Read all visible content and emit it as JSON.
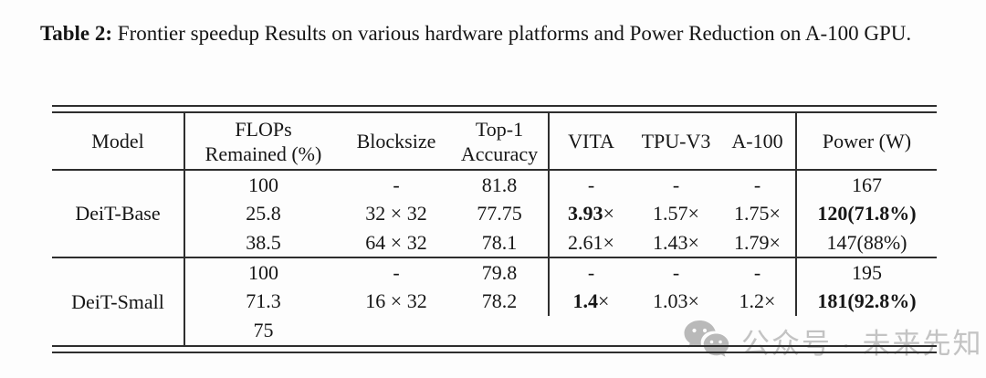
{
  "caption": {
    "label": "Table 2:",
    "text": " Frontier speedup Results on various hardware platforms and Power Reduction on A-100 GPU."
  },
  "table": {
    "headers": {
      "model": "Model",
      "flops_line1": "FLOPs",
      "flops_line2": "Remained (%)",
      "blocksize": "Blocksize",
      "top1_line1": "Top-1",
      "top1_line2": "Accuracy",
      "vita": "VITA",
      "tpu": "TPU-V3",
      "a100": "A-100",
      "power": "Power (W)"
    },
    "groups": [
      {
        "model": "DeiT-Base",
        "rows": [
          {
            "cells": [
              "100",
              "-",
              "81.8",
              "-",
              "-",
              "-",
              "167"
            ]
          },
          {
            "cells": [
              "25.8",
              "32 × 32",
              "77.75",
              [
                [
                  "3.93",
                  1
                ],
                [
                  "×",
                  0
                ]
              ],
              "1.57×",
              "1.75×",
              [
                [
                  "120(71.8%)",
                  1
                ]
              ]
            ]
          },
          {
            "cells": [
              "38.5",
              "64 × 32",
              "78.1",
              "2.61×",
              "1.43×",
              "1.79×",
              "147(88%)"
            ]
          }
        ]
      },
      {
        "model": "DeiT-Small",
        "rows": [
          {
            "cells": [
              "100",
              "-",
              "79.8",
              "-",
              "-",
              "-",
              "195"
            ]
          },
          {
            "cells": [
              "71.3",
              "16 × 32",
              "78.2",
              [
                [
                  "1.4",
                  1
                ],
                [
                  "×",
                  0
                ]
              ],
              "1.03×",
              "1.2×",
              [
                [
                  "181(92.8%)",
                  1
                ]
              ]
            ]
          },
          {
            "cells": [
              "75",
              "",
              "",
              "",
              "",
              "",
              ""
            ]
          }
        ]
      }
    ]
  },
  "watermark": {
    "icon": "wechat-icon",
    "text": "公众号 · 未来先知",
    "color": "#c3c3c3"
  },
  "colors": {
    "rule": "#2e2e2e",
    "text": "#161616",
    "background": "#fdfdfd"
  }
}
